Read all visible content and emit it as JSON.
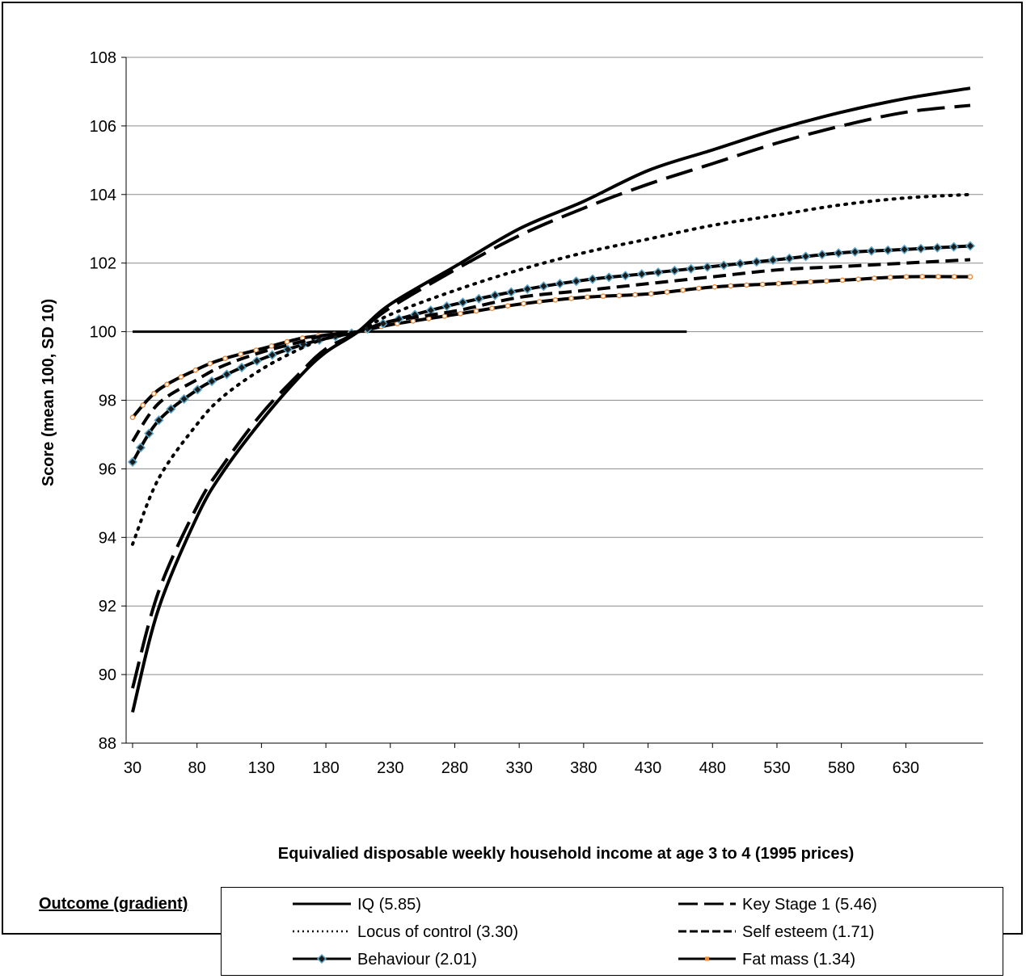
{
  "chart_data": {
    "type": "line",
    "title": "",
    "xlabel": "Equivalied disposable weekly household income at age 3 to 4 (1995 prices)",
    "ylabel": "Score (mean 100, SD 10)",
    "xlim": [
      25,
      690
    ],
    "ylim": [
      88,
      108
    ],
    "x_ticks": [
      30,
      80,
      130,
      180,
      230,
      280,
      330,
      380,
      430,
      480,
      530,
      580,
      630
    ],
    "y_ticks": [
      88,
      90,
      92,
      94,
      96,
      98,
      100,
      102,
      104,
      106,
      108
    ],
    "grid": "horizontal",
    "legend_title": "Outcome (gradient)",
    "legend_placement": "bottom",
    "reference_line": {
      "y": 100,
      "x_from": 30,
      "x_to": 460
    },
    "x_points": [
      30,
      50,
      80,
      100,
      130,
      160,
      180,
      205,
      230,
      280,
      330,
      380,
      430,
      480,
      530,
      580,
      630,
      680
    ],
    "series": [
      {
        "name": "IQ (5.85)",
        "style": "solid",
        "color": "#000000",
        "values": [
          88.9,
          91.9,
          94.6,
          95.9,
          97.4,
          98.7,
          99.4,
          100.0,
          100.8,
          101.9,
          103.0,
          103.8,
          104.7,
          105.3,
          105.9,
          106.4,
          106.8,
          107.1
        ]
      },
      {
        "name": "Key Stage 1 (5.46)",
        "style": "longdash",
        "color": "#000000",
        "values": [
          89.6,
          92.4,
          94.9,
          96.1,
          97.6,
          98.8,
          99.5,
          100.0,
          100.7,
          101.8,
          102.8,
          103.6,
          104.3,
          104.9,
          105.5,
          106.0,
          106.4,
          106.6
        ]
      },
      {
        "name": "Locus of control (3.30)",
        "style": "dotted",
        "color": "#000000",
        "values": [
          93.8,
          95.7,
          97.3,
          98.1,
          98.9,
          99.5,
          99.8,
          100.0,
          100.5,
          101.2,
          101.8,
          102.3,
          102.7,
          103.1,
          103.4,
          103.7,
          103.9,
          104.0
        ]
      },
      {
        "name": "Self esteem (1.71)",
        "style": "dash",
        "color": "#000000",
        "values": [
          96.8,
          97.9,
          98.6,
          99.0,
          99.4,
          99.7,
          99.9,
          100.0,
          100.3,
          100.6,
          101.0,
          101.2,
          101.4,
          101.6,
          101.8,
          101.9,
          102.0,
          102.1
        ]
      },
      {
        "name": "Behaviour (2.01)",
        "style": "solid-diamond",
        "color": "#000000",
        "marker_color": "#5aa5c8",
        "values": [
          96.2,
          97.4,
          98.3,
          98.7,
          99.2,
          99.6,
          99.8,
          100.0,
          100.3,
          100.8,
          101.2,
          101.5,
          101.7,
          101.9,
          102.1,
          102.3,
          102.4,
          102.5
        ]
      },
      {
        "name": "Fat mass (1.34)",
        "style": "solid-dot",
        "color": "#000000",
        "marker_color": "#e88a3c",
        "values": [
          97.5,
          98.3,
          98.9,
          99.2,
          99.5,
          99.8,
          99.9,
          100.0,
          100.2,
          100.5,
          100.8,
          101.0,
          101.1,
          101.3,
          101.4,
          101.5,
          101.6,
          101.6
        ]
      }
    ]
  }
}
